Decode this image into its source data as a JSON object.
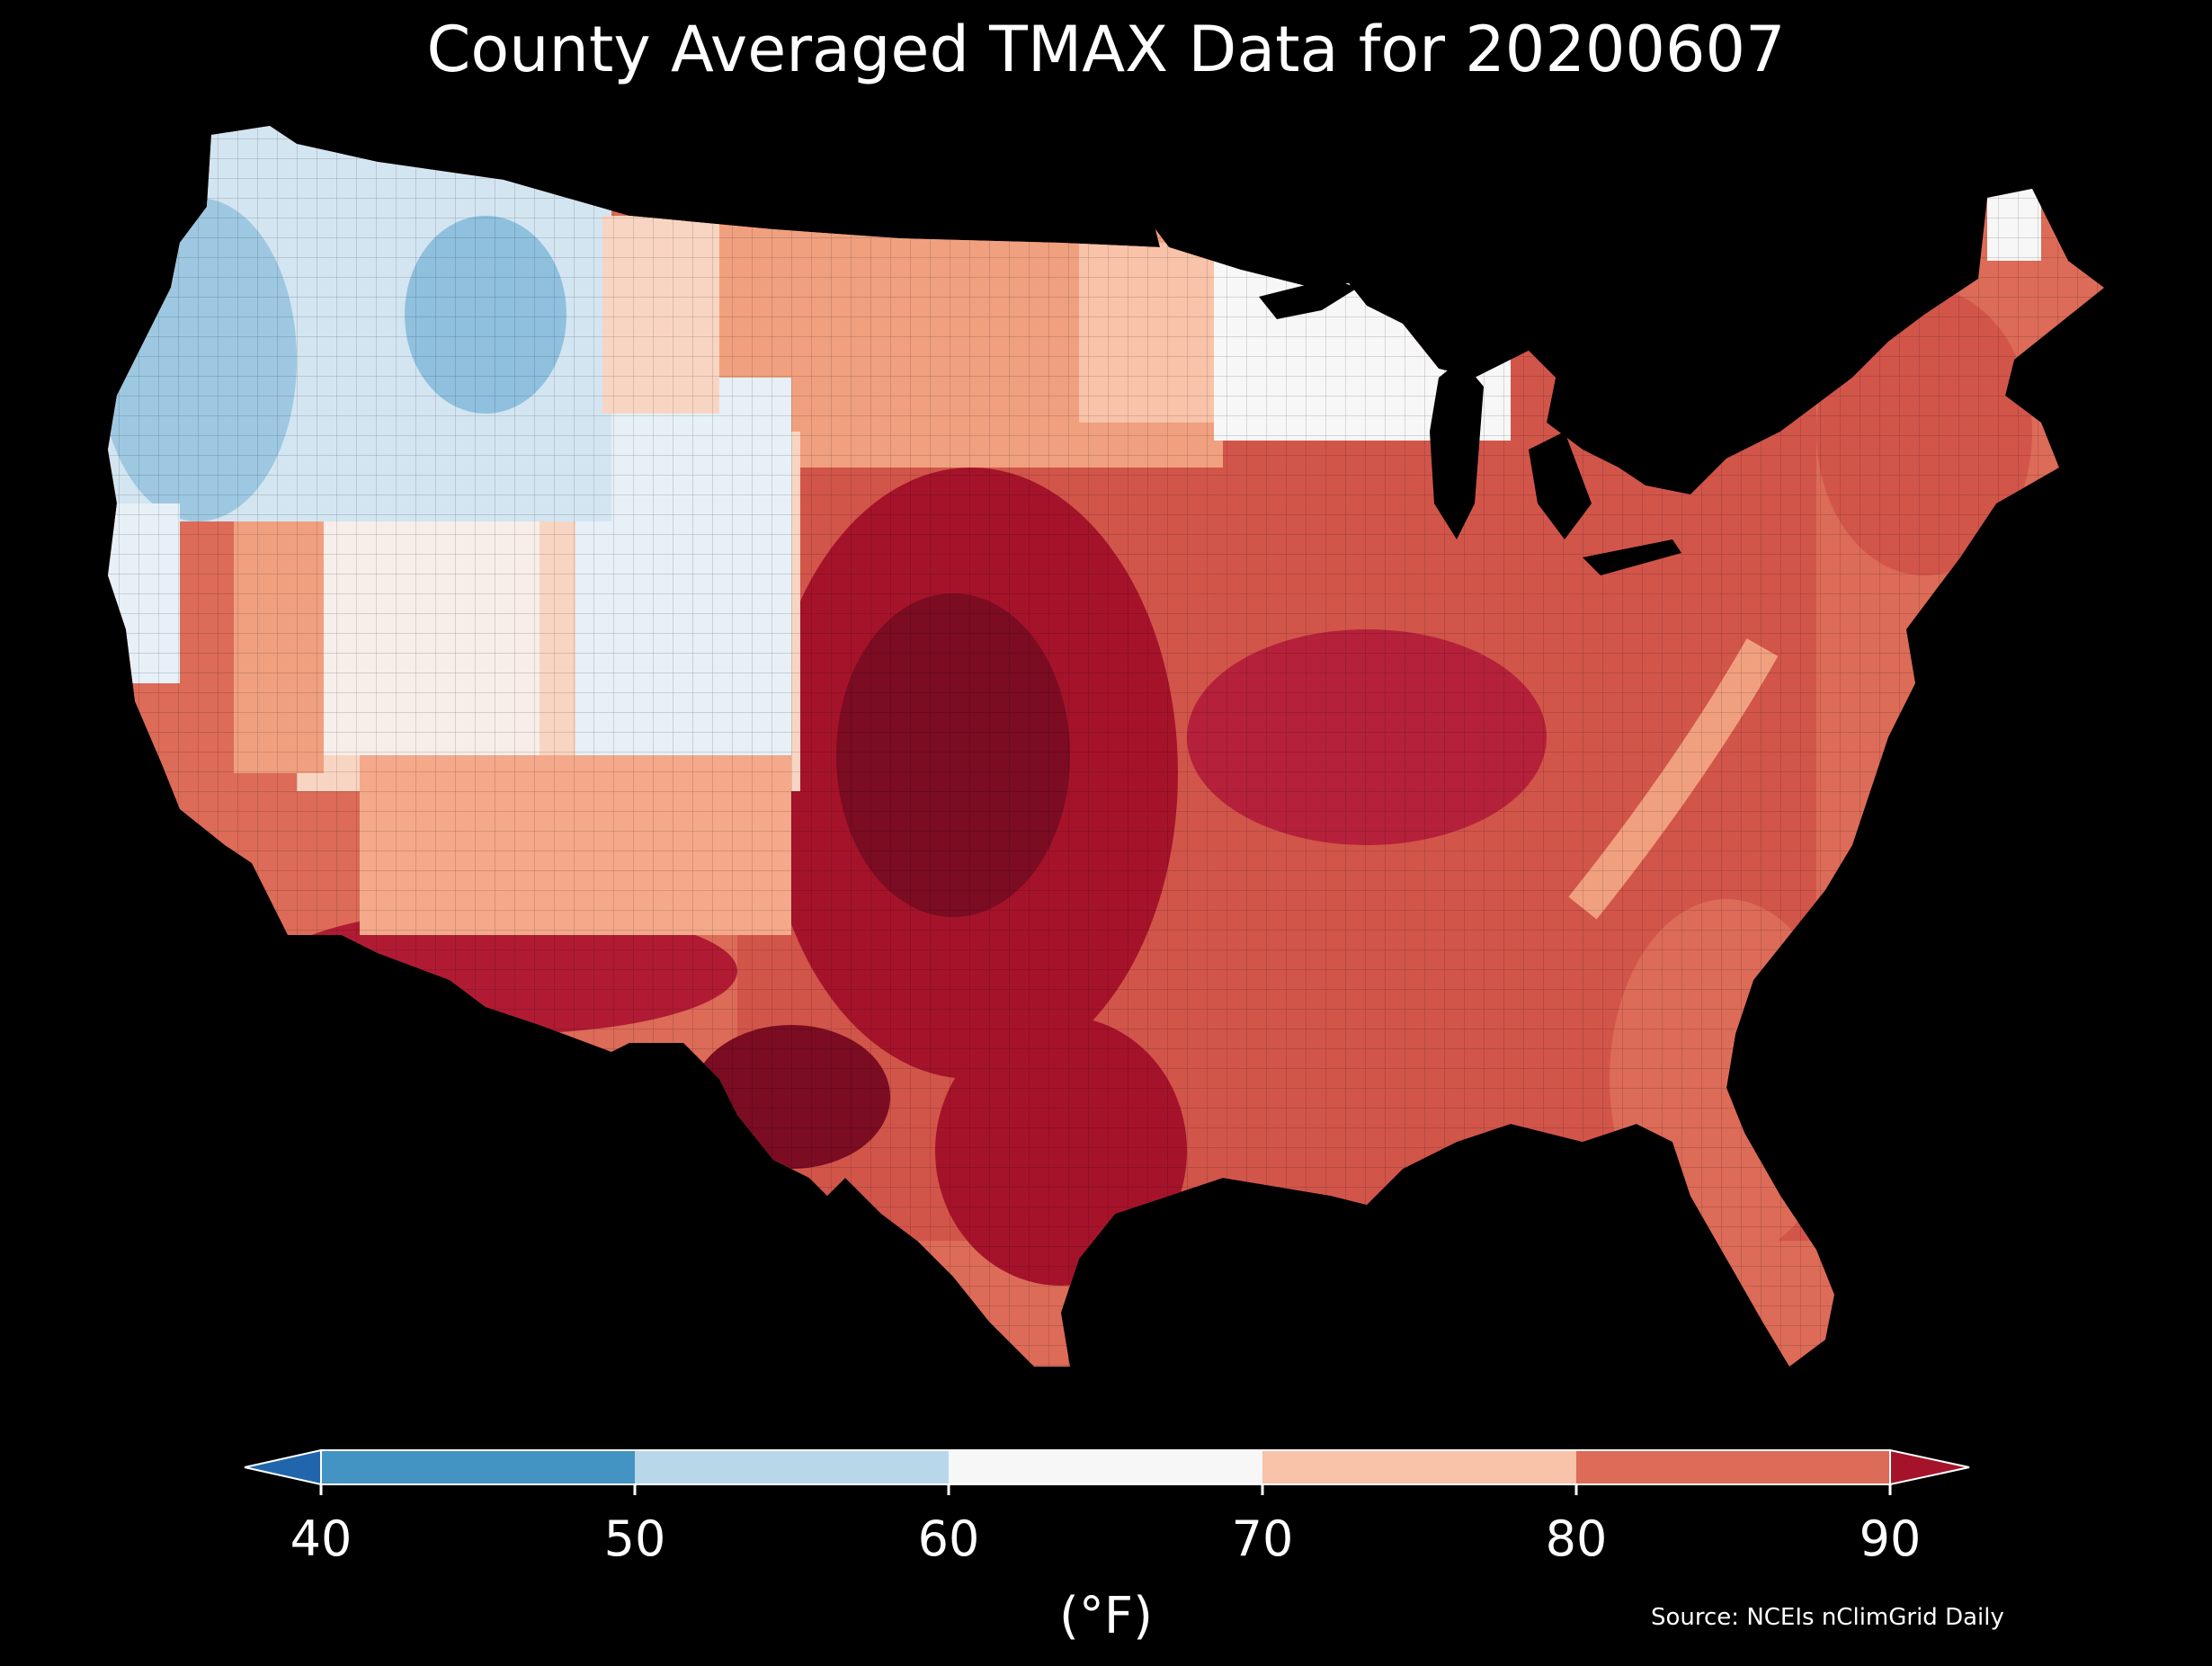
{
  "title": "County Averaged TMAX Data for 20200607",
  "colorbar": {
    "ticks": [
      "40",
      "50",
      "60",
      "70",
      "80",
      "90"
    ],
    "unit": "(°F)",
    "colors": {
      "under": "#2166ac",
      "bins": [
        "#4393c3",
        "#b8d8ea",
        "#f7f7f7",
        "#f8c3a8",
        "#dc6b58"
      ],
      "over": "#a5132a"
    }
  },
  "source": "Source: NCEIs nClimGrid Daily",
  "map": {
    "region": "Contiguous United States",
    "variable": "TMAX",
    "zones": [
      {
        "name": "pacific-northwest-coast",
        "category": "50-60"
      },
      {
        "name": "northern-rockies",
        "category": "50-60"
      },
      {
        "name": "great-basin",
        "category": "60-70"
      },
      {
        "name": "california",
        "category": "70-80"
      },
      {
        "name": "desert-southwest",
        "category": "above-90"
      },
      {
        "name": "northern-plains",
        "category": "70-80"
      },
      {
        "name": "southern-plains",
        "category": "above-90"
      },
      {
        "name": "midwest",
        "category": "80-90"
      },
      {
        "name": "great-lakes",
        "category": "60-70"
      },
      {
        "name": "southeast",
        "category": "80-90"
      },
      {
        "name": "appalachians",
        "category": "70-80"
      },
      {
        "name": "northeast",
        "category": "80-90"
      },
      {
        "name": "northern-maine",
        "category": "60-70"
      }
    ]
  }
}
